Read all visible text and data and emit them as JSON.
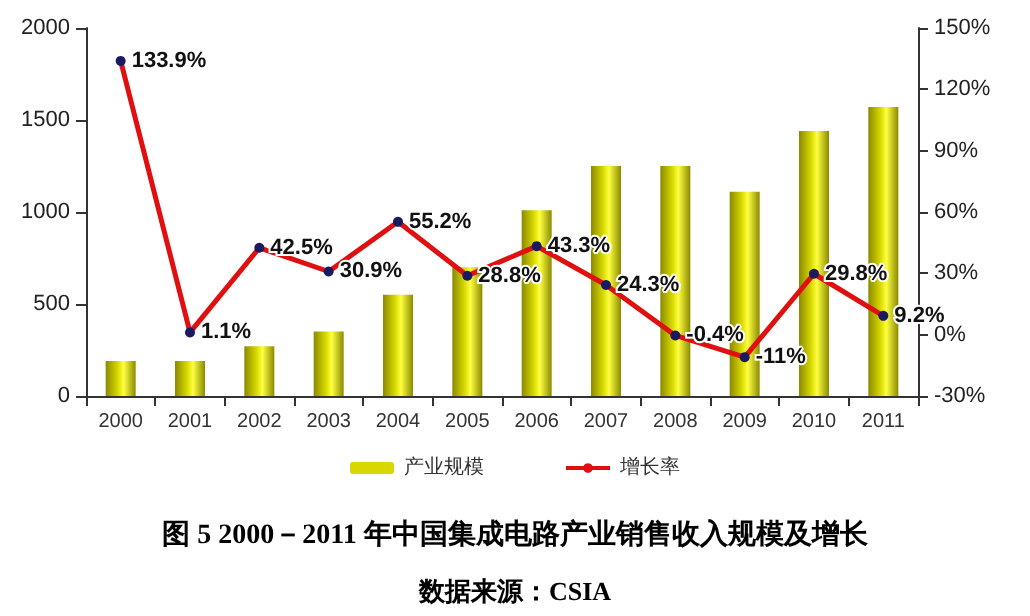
{
  "chart_data": {
    "type": "bar",
    "title": "图 5 2000－2011 年中国集成电路产业销售收入规模及增长",
    "annotations": [
      "数据来源：CSIA"
    ],
    "categories": [
      "2000",
      "2001",
      "2002",
      "2003",
      "2004",
      "2005",
      "2006",
      "2007",
      "2008",
      "2009",
      "2010",
      "2011"
    ],
    "series": [
      {
        "name": "产业规模",
        "color": "#d8d800",
        "values": [
          190,
          190,
          270,
          350,
          550,
          700,
          1010,
          1250,
          1250,
          1110,
          1440,
          1570
        ]
      },
      {
        "name": "增长率",
        "type": "line",
        "axis": "y2",
        "color": "#e01010",
        "marker": "circle",
        "values": [
          133.9,
          1.1,
          42.5,
          30.9,
          55.2,
          28.8,
          43.3,
          24.3,
          -0.4,
          -11,
          29.8,
          9.2
        ],
        "value_labels": [
          "133.9%",
          "1.1%",
          "42.5%",
          "30.9%",
          "55.2%",
          "28.8%",
          "43.3%",
          "24.3%",
          "-0.4%",
          "-11%",
          "29.8%",
          "9.2%"
        ]
      }
    ],
    "ylim": [
      0,
      2000
    ],
    "yticks": [
      0,
      500,
      1000,
      1500,
      2000
    ],
    "y2lim": [
      -30,
      150
    ],
    "y2ticks": [
      {
        "value": -30,
        "label": "-30%"
      },
      {
        "value": 0,
        "label": "0%"
      },
      {
        "value": 30,
        "label": "30%"
      },
      {
        "value": 60,
        "label": "60%"
      },
      {
        "value": 90,
        "label": "90%"
      },
      {
        "value": 120,
        "label": "120%"
      },
      {
        "value": 150,
        "label": "150%"
      }
    ],
    "grid": false,
    "legend": "bottom"
  }
}
